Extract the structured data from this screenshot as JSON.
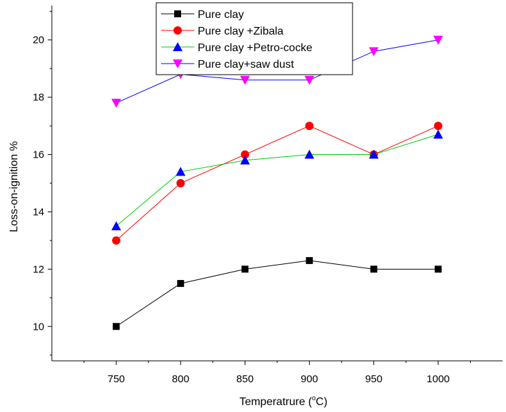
{
  "chart_data": {
    "type": "line",
    "title": "",
    "xlabel": "Temperatrure (",
    "xlabel_superscript": "o",
    "xlabel_suffix": "C)",
    "ylabel": "Loss-on-ignition  %",
    "x": [
      750,
      800,
      850,
      900,
      950,
      1000
    ],
    "xlim": [
      700,
      1050
    ],
    "ylim": [
      8.8,
      21.2
    ],
    "x_ticks": [
      750,
      800,
      850,
      900,
      950,
      1000
    ],
    "x_tick_labels": [
      "750",
      "800",
      "850",
      "900",
      "950",
      "1000"
    ],
    "y_ticks": [
      10,
      12,
      14,
      16,
      18,
      20
    ],
    "y_tick_labels": [
      "10",
      "12",
      "14",
      "16",
      "18",
      "20"
    ],
    "grid": false,
    "legend_position": "top-center",
    "series": [
      {
        "name": "Pure clay",
        "values": [
          10.0,
          11.5,
          12.0,
          12.3,
          12.0,
          12.0
        ],
        "line_color": "#000000",
        "marker": "square",
        "marker_color": "#000000"
      },
      {
        "name": "Pure clay +Zibala",
        "values": [
          13.0,
          15.0,
          16.0,
          17.0,
          16.0,
          17.0
        ],
        "line_color": "#ff0000",
        "marker": "circle",
        "marker_color": "#ff0000"
      },
      {
        "name": "Pure clay +Petro-cocke",
        "values": [
          13.5,
          15.4,
          15.8,
          16.0,
          16.0,
          16.7
        ],
        "line_color": "#00cc00",
        "marker": "triangle-up",
        "marker_color": "#0000ff"
      },
      {
        "name": "Pure clay+saw dust",
        "values": [
          17.8,
          18.8,
          18.6,
          18.6,
          19.6,
          20.0
        ],
        "line_color": "#0000ff",
        "marker": "triangle-down",
        "marker_color": "#ff00ff"
      }
    ]
  }
}
